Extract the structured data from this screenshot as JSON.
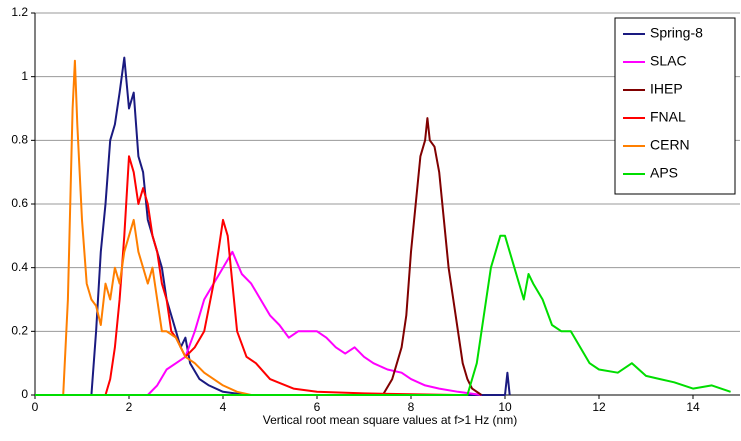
{
  "chart_data": {
    "type": "line",
    "xlabel": "Vertical root mean square values at f>1 Hz (nm)",
    "xlim": [
      0,
      15
    ],
    "xticks": [
      0,
      2,
      4,
      6,
      8,
      10,
      12,
      14
    ],
    "ylim": [
      0,
      1.2
    ],
    "yticks": [
      0,
      0.2,
      0.4,
      0.6,
      0.8,
      1,
      1.2
    ],
    "grid": true,
    "legend": "top-right",
    "series": [
      {
        "name": "Spring-8",
        "color": "#1a1a80",
        "x": [
          0,
          1.2,
          1.3,
          1.4,
          1.5,
          1.6,
          1.7,
          1.8,
          1.9,
          2.0,
          2.1,
          2.2,
          2.3,
          2.4,
          2.5,
          2.6,
          2.7,
          2.8,
          2.9,
          3.0,
          3.1,
          3.2,
          3.3,
          3.5,
          3.7,
          4.0,
          4.5,
          10.0,
          10.05,
          10.1
        ],
        "values": [
          0,
          0,
          0.2,
          0.45,
          0.6,
          0.8,
          0.85,
          0.95,
          1.06,
          0.9,
          0.95,
          0.75,
          0.7,
          0.55,
          0.5,
          0.45,
          0.4,
          0.3,
          0.25,
          0.2,
          0.15,
          0.18,
          0.1,
          0.05,
          0.03,
          0.01,
          0,
          0,
          0.07,
          0
        ]
      },
      {
        "name": "SLAC",
        "color": "#ff00ff",
        "x": [
          2.4,
          2.6,
          2.8,
          3.0,
          3.2,
          3.4,
          3.6,
          3.8,
          4.0,
          4.2,
          4.4,
          4.6,
          4.8,
          5.0,
          5.2,
          5.4,
          5.6,
          5.8,
          6.0,
          6.2,
          6.4,
          6.6,
          6.8,
          7.0,
          7.2,
          7.5,
          7.8,
          8.0,
          8.3,
          8.6,
          9.0,
          9.5
        ],
        "values": [
          0,
          0.03,
          0.08,
          0.1,
          0.12,
          0.2,
          0.3,
          0.35,
          0.4,
          0.45,
          0.38,
          0.35,
          0.3,
          0.25,
          0.22,
          0.18,
          0.2,
          0.2,
          0.2,
          0.18,
          0.15,
          0.13,
          0.15,
          0.12,
          0.1,
          0.08,
          0.07,
          0.05,
          0.03,
          0.02,
          0.01,
          0
        ]
      },
      {
        "name": "IHEP",
        "color": "#800000",
        "x": [
          7.4,
          7.6,
          7.8,
          7.9,
          8.0,
          8.1,
          8.2,
          8.3,
          8.35,
          8.4,
          8.5,
          8.6,
          8.7,
          8.8,
          8.9,
          9.0,
          9.1,
          9.2,
          9.3,
          9.5
        ],
        "values": [
          0,
          0.05,
          0.15,
          0.25,
          0.45,
          0.6,
          0.75,
          0.8,
          0.87,
          0.8,
          0.78,
          0.7,
          0.55,
          0.4,
          0.3,
          0.2,
          0.1,
          0.05,
          0.02,
          0
        ]
      },
      {
        "name": "FNAL",
        "color": "#ff0000",
        "x": [
          1.5,
          1.6,
          1.7,
          1.8,
          1.9,
          2.0,
          2.1,
          2.2,
          2.3,
          2.4,
          2.5,
          2.6,
          2.7,
          2.8,
          2.9,
          3.0,
          3.2,
          3.4,
          3.6,
          3.8,
          3.9,
          4.0,
          4.1,
          4.2,
          4.3,
          4.5,
          4.7,
          5.0,
          5.5,
          6.0,
          7.0,
          9.0
        ],
        "values": [
          0,
          0.05,
          0.15,
          0.3,
          0.5,
          0.75,
          0.7,
          0.6,
          0.65,
          0.6,
          0.5,
          0.45,
          0.35,
          0.3,
          0.2,
          0.18,
          0.12,
          0.15,
          0.2,
          0.35,
          0.45,
          0.55,
          0.5,
          0.35,
          0.2,
          0.12,
          0.1,
          0.05,
          0.02,
          0.01,
          0.005,
          0
        ]
      },
      {
        "name": "CERN",
        "color": "#ff7f00",
        "x": [
          0,
          0.6,
          0.7,
          0.8,
          0.85,
          0.9,
          1.0,
          1.1,
          1.2,
          1.3,
          1.4,
          1.5,
          1.6,
          1.7,
          1.8,
          1.9,
          2.0,
          2.1,
          2.2,
          2.3,
          2.4,
          2.5,
          2.6,
          2.7,
          2.8,
          3.0,
          3.2,
          3.4,
          3.6,
          3.8,
          4.0,
          4.3,
          4.6
        ],
        "values": [
          0,
          0,
          0.3,
          0.9,
          1.05,
          0.85,
          0.55,
          0.35,
          0.3,
          0.28,
          0.22,
          0.35,
          0.3,
          0.4,
          0.35,
          0.45,
          0.5,
          0.55,
          0.45,
          0.4,
          0.35,
          0.4,
          0.3,
          0.2,
          0.2,
          0.18,
          0.12,
          0.1,
          0.07,
          0.05,
          0.03,
          0.01,
          0
        ]
      },
      {
        "name": "APS",
        "color": "#00dd00",
        "x": [
          0,
          9.2,
          9.4,
          9.5,
          9.6,
          9.7,
          9.8,
          9.9,
          10.0,
          10.1,
          10.2,
          10.3,
          10.4,
          10.5,
          10.6,
          10.8,
          11.0,
          11.2,
          11.4,
          11.6,
          11.8,
          12.0,
          12.4,
          12.7,
          13.0,
          13.3,
          13.6,
          14.0,
          14.4,
          14.8
        ],
        "values": [
          0,
          0,
          0.1,
          0.2,
          0.3,
          0.4,
          0.45,
          0.5,
          0.5,
          0.45,
          0.4,
          0.35,
          0.3,
          0.38,
          0.35,
          0.3,
          0.22,
          0.2,
          0.2,
          0.15,
          0.1,
          0.08,
          0.07,
          0.1,
          0.06,
          0.05,
          0.04,
          0.02,
          0.03,
          0.01
        ]
      }
    ]
  }
}
